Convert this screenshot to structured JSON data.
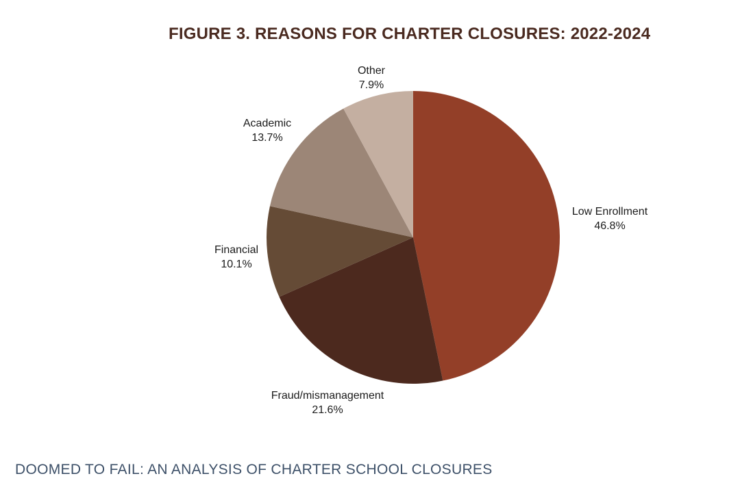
{
  "chart_data": {
    "type": "pie",
    "title": "FIGURE 3. REASONS FOR CHARTER CLOSURES: 2022-2024",
    "slices": [
      {
        "label": "Low Enrollment",
        "value": 46.8,
        "value_label": "46.8%",
        "color": "#933f28"
      },
      {
        "label": "Fraud/mismanagement",
        "value": 21.6,
        "value_label": "21.6%",
        "color": "#4c291e"
      },
      {
        "label": "Financial",
        "value": 10.1,
        "value_label": "10.1%",
        "color": "#654b36"
      },
      {
        "label": "Academic",
        "value": 13.7,
        "value_label": "13.7%",
        "color": "#9c8677"
      },
      {
        "label": "Other",
        "value": 7.9,
        "value_label": "7.9%",
        "color": "#c4afa1"
      }
    ],
    "start": "12 o'clock",
    "direction": "clockwise",
    "legend": "none",
    "labels": "outside slices"
  },
  "footer": {
    "text": "DOOMED TO FAIL: AN ANALYSIS OF CHARTER SCHOOL CLOSURES"
  }
}
